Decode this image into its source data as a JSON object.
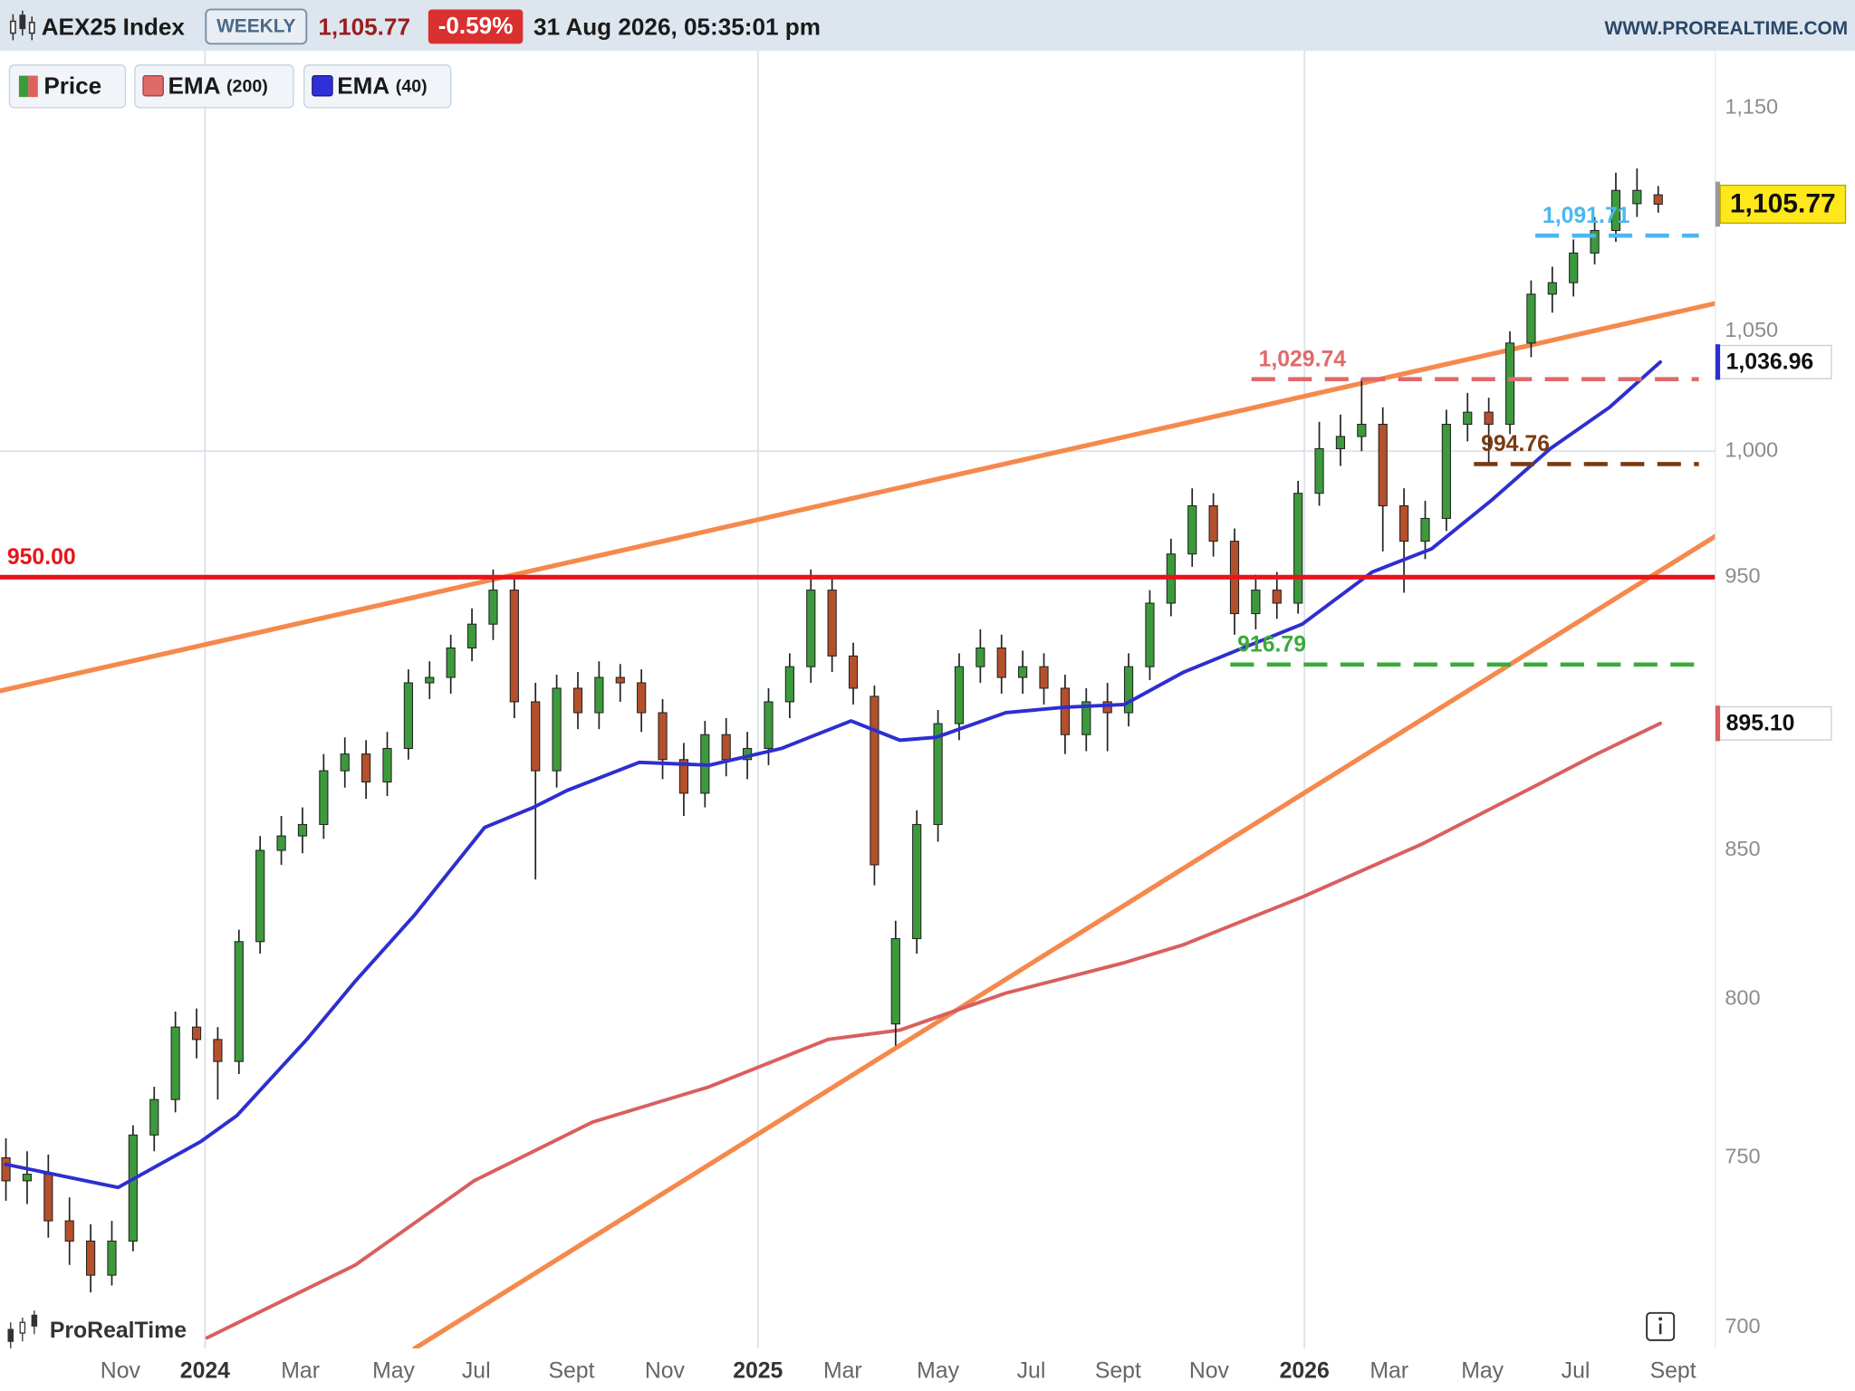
{
  "header": {
    "instrument": "AEX25 Index",
    "interval": "WEEKLY",
    "price": "1,105.77",
    "change": "-0.59%",
    "timestamp": "31 Aug 2026, 05:35:01 pm",
    "site": "WWW.PROREALTIME.COM",
    "watermark": "ProRealTime"
  },
  "chart_data": {
    "type": "candlestick",
    "yscale": "log",
    "xlim": [
      -0.28,
      80.7
    ],
    "ylim": [
      694,
      1177
    ],
    "xticks": [
      {
        "value": 5.4,
        "label": "Nov"
      },
      {
        "value": 9.4,
        "label": "2024",
        "grid": true
      },
      {
        "value": 13.9,
        "label": "Mar"
      },
      {
        "value": 18.3,
        "label": "May"
      },
      {
        "value": 22.2,
        "label": "Jul"
      },
      {
        "value": 26.7,
        "label": "Sept"
      },
      {
        "value": 31.1,
        "label": "Nov"
      },
      {
        "value": 35.5,
        "label": "2025",
        "grid": true
      },
      {
        "value": 39.5,
        "label": "Mar"
      },
      {
        "value": 44.0,
        "label": "May"
      },
      {
        "value": 48.4,
        "label": "Jul"
      },
      {
        "value": 52.5,
        "label": "Sept"
      },
      {
        "value": 56.8,
        "label": "Nov"
      },
      {
        "value": 61.3,
        "label": "2026",
        "grid": true
      },
      {
        "value": 65.3,
        "label": "Mar"
      },
      {
        "value": 69.7,
        "label": "May"
      },
      {
        "value": 74.1,
        "label": "Jul"
      },
      {
        "value": 78.7,
        "label": "Sept"
      }
    ],
    "yticks": [
      700,
      750,
      800,
      850,
      950,
      {
        "value": 1000,
        "label": "1,000",
        "grid": true
      },
      {
        "value": 1050,
        "label": "1,050"
      },
      {
        "value": 1150,
        "label": "1,150"
      }
    ],
    "series": [
      {
        "name": "Price",
        "type": "candlestick",
        "up_color": "#3c9a3c",
        "down_color": "#b4502c",
        "last_label": "1,105.77",
        "open": [
          750,
          743,
          745,
          731,
          725,
          715,
          725,
          757,
          768,
          791,
          787,
          780,
          819,
          850,
          855,
          859,
          878,
          884,
          874,
          886,
          910,
          912,
          923,
          932,
          945,
          903,
          878,
          908,
          899,
          912,
          910,
          899,
          882,
          870,
          891,
          882,
          886,
          903,
          916,
          945,
          920,
          905,
          792,
          820,
          859,
          895,
          916,
          923,
          912,
          916,
          908,
          891,
          903,
          899,
          916,
          940,
          959,
          978,
          964,
          936,
          945,
          940,
          983,
          1001,
          1006,
          1011,
          978,
          964,
          973,
          1011,
          1016,
          1011,
          1045,
          1066,
          1071,
          1084,
          1094,
          1106,
          1110
        ],
        "high": [
          756,
          752,
          751,
          738,
          730,
          731,
          760,
          772,
          796,
          797,
          791,
          823,
          855,
          862,
          865,
          884,
          890,
          889,
          892,
          915,
          918,
          928,
          938,
          953,
          950,
          910,
          913,
          914,
          918,
          917,
          915,
          904,
          888,
          896,
          897,
          892,
          908,
          921,
          953,
          950,
          925,
          909,
          826,
          864,
          900,
          921,
          930,
          928,
          922,
          921,
          913,
          908,
          910,
          921,
          945,
          965,
          985,
          983,
          969,
          951,
          952,
          988,
          1012,
          1015,
          1030,
          1018,
          985,
          980,
          1017,
          1024,
          1022,
          1050,
          1072,
          1078,
          1090,
          1100,
          1120,
          1122,
          1114
        ],
        "low": [
          737,
          736,
          726,
          718,
          710,
          712,
          722,
          752,
          764,
          781,
          768,
          776,
          815,
          845,
          849,
          854,
          872,
          868,
          869,
          882,
          904,
          906,
          918,
          926,
          897,
          840,
          872,
          893,
          893,
          903,
          892,
          875,
          862,
          865,
          876,
          875,
          880,
          897,
          910,
          914,
          902,
          838,
          785,
          815,
          853,
          889,
          910,
          906,
          906,
          902,
          884,
          885,
          885,
          894,
          911,
          935,
          954,
          958,
          928,
          930,
          934,
          936,
          978,
          994,
          1000,
          960,
          944,
          957,
          968,
          1004,
          995,
          1007,
          1039,
          1058,
          1065,
          1079,
          1089,
          1100,
          1102
        ],
        "close": [
          743,
          745,
          731,
          725,
          715,
          725,
          757,
          768,
          791,
          787,
          780,
          819,
          850,
          855,
          859,
          878,
          884,
          874,
          886,
          910,
          912,
          923,
          932,
          945,
          903,
          878,
          908,
          899,
          912,
          910,
          899,
          882,
          870,
          891,
          882,
          886,
          903,
          916,
          945,
          920,
          908,
          845,
          820,
          859,
          895,
          916,
          923,
          912,
          916,
          908,
          891,
          903,
          899,
          916,
          940,
          959,
          978,
          964,
          936,
          945,
          940,
          983,
          1001,
          1006,
          1011,
          978,
          964,
          973,
          1011,
          1016,
          1011,
          1045,
          1066,
          1071,
          1084,
          1094,
          1112,
          1112,
          1105.77
        ]
      },
      {
        "name": "EMA",
        "params": "(200)",
        "type": "line",
        "color": "#d95f5f",
        "last_label": "895.10",
        "x": [
          9.5,
          16.5,
          22.1,
          27.7,
          33.2,
          38.8,
          42.2,
          47.2,
          52.8,
          55.6,
          61.2,
          66.8,
          72.3,
          75.1,
          78.1
        ],
        "values": [
          697,
          718,
          743,
          761,
          772,
          787,
          790,
          802,
          812,
          818,
          834,
          852,
          873,
          884,
          895.1
        ]
      },
      {
        "name": "EMA",
        "params": "(40)",
        "type": "line",
        "color": "#2e2ed0",
        "last_label": "1,036.96",
        "x": [
          0,
          5.3,
          9.2,
          10.9,
          14.2,
          16.5,
          19.3,
          22.6,
          24.9,
          26.5,
          29.9,
          33.2,
          36.6,
          39.9,
          42.2,
          43.9,
          47.2,
          50.0,
          52.8,
          55.6,
          58.4,
          61.2,
          64.5,
          67.3,
          70.1,
          72.9,
          75.7,
          78.1
        ],
        "values": [
          748,
          741,
          755,
          763,
          787,
          806,
          828,
          858,
          865,
          871,
          881,
          880,
          886,
          896,
          889,
          890,
          899,
          901,
          902,
          914,
          923,
          932,
          952,
          961,
          980,
          1001,
          1018,
          1036.96
        ]
      }
    ],
    "trendlines": [
      {
        "color": "#f5894d",
        "x": [
          -0.28,
          80.7
        ],
        "values": [
          907,
          1062
        ]
      },
      {
        "color": "#f5894d",
        "x": [
          19.3,
          80.7
        ],
        "values": [
          694,
          966
        ]
      }
    ],
    "levels": [
      {
        "value": 950,
        "label": "950.00",
        "color": "#e8141a",
        "style": "solid"
      },
      {
        "value": 1029.74,
        "label": "1,029.74",
        "color": "#e06a6a",
        "style": "dashed",
        "x_start": 58.8
      },
      {
        "value": 994.76,
        "label": "994.76",
        "color": "#7a3a10",
        "style": "dashed",
        "x_start": 69.3
      },
      {
        "value": 916.79,
        "label": "916.79",
        "color": "#3aaa3a",
        "style": "dashed",
        "x_start": 57.8
      },
      {
        "value": 1091.71,
        "label": "1,091.71",
        "color": "#4ab8f0",
        "style": "dashed",
        "x_start": 72.2
      }
    ]
  }
}
